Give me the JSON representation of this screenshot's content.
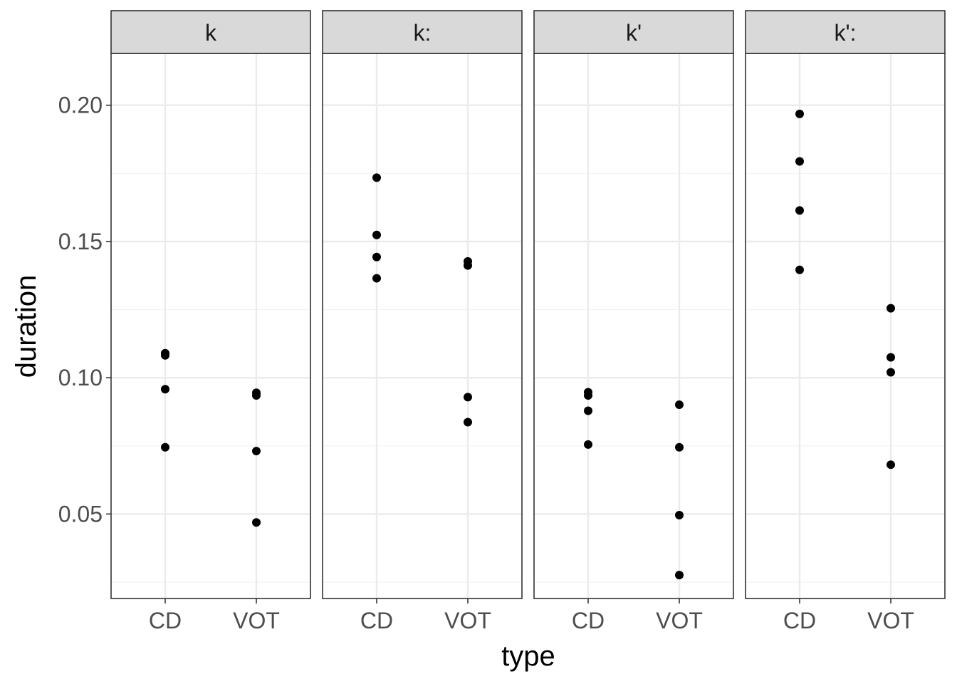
{
  "chart_data": {
    "type": "scatter",
    "xlabel": "type",
    "ylabel": "duration",
    "categories": [
      "CD",
      "VOT"
    ],
    "ylim": [
      0.019,
      0.219
    ],
    "yticks": [
      0.05,
      0.1,
      0.15,
      0.2
    ],
    "ytick_labels": [
      "0.05",
      "0.10",
      "0.15",
      "0.20"
    ],
    "grid": true,
    "theme": "bw",
    "point_color": "#000000",
    "panels": [
      {
        "label": "k",
        "points": [
          {
            "x": "CD",
            "y": 0.109
          },
          {
            "x": "CD",
            "y": 0.1082
          },
          {
            "x": "CD",
            "y": 0.0958
          },
          {
            "x": "CD",
            "y": 0.0745
          },
          {
            "x": "VOT",
            "y": 0.0945
          },
          {
            "x": "VOT",
            "y": 0.0935
          },
          {
            "x": "VOT",
            "y": 0.0731
          },
          {
            "x": "VOT",
            "y": 0.0469
          }
        ]
      },
      {
        "label": "k:",
        "points": [
          {
            "x": "CD",
            "y": 0.1734
          },
          {
            "x": "CD",
            "y": 0.1524
          },
          {
            "x": "CD",
            "y": 0.1443
          },
          {
            "x": "CD",
            "y": 0.1365
          },
          {
            "x": "VOT",
            "y": 0.1427
          },
          {
            "x": "VOT",
            "y": 0.1412
          },
          {
            "x": "VOT",
            "y": 0.0929
          },
          {
            "x": "VOT",
            "y": 0.0837
          }
        ]
      },
      {
        "label": "k'",
        "points": [
          {
            "x": "CD",
            "y": 0.0947
          },
          {
            "x": "CD",
            "y": 0.0935
          },
          {
            "x": "CD",
            "y": 0.0879
          },
          {
            "x": "CD",
            "y": 0.0755
          },
          {
            "x": "VOT",
            "y": 0.0901
          },
          {
            "x": "VOT",
            "y": 0.0745
          },
          {
            "x": "VOT",
            "y": 0.0496
          },
          {
            "x": "VOT",
            "y": 0.0276
          }
        ]
      },
      {
        "label": "k':",
        "points": [
          {
            "x": "CD",
            "y": 0.1968
          },
          {
            "x": "CD",
            "y": 0.1794
          },
          {
            "x": "CD",
            "y": 0.1614
          },
          {
            "x": "CD",
            "y": 0.1396
          },
          {
            "x": "VOT",
            "y": 0.1255
          },
          {
            "x": "VOT",
            "y": 0.1075
          },
          {
            "x": "VOT",
            "y": 0.102
          },
          {
            "x": "VOT",
            "y": 0.0681
          }
        ]
      }
    ]
  }
}
